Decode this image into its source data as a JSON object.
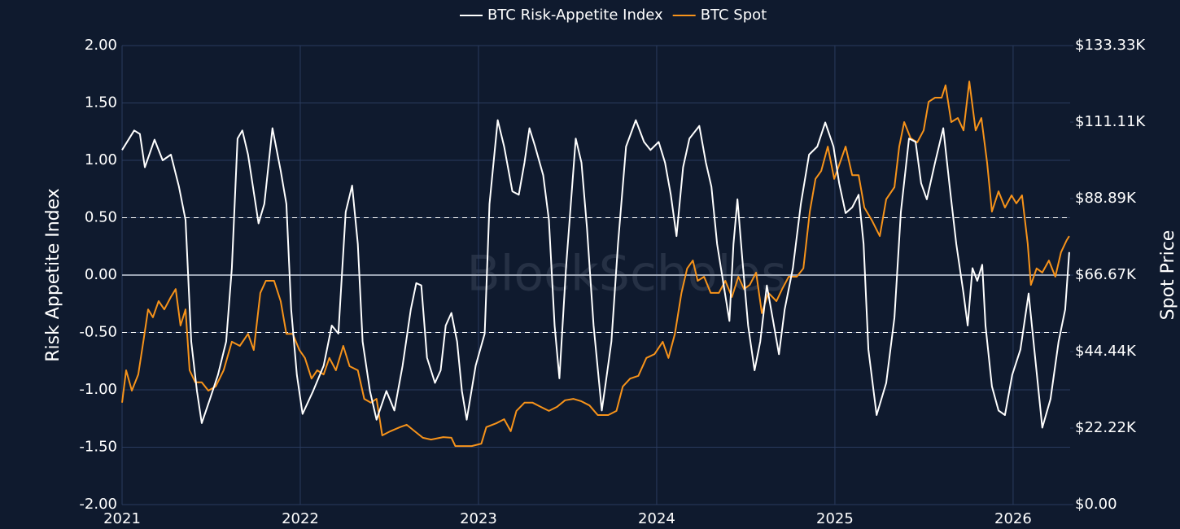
{
  "chart_data": {
    "type": "line",
    "legend": "top",
    "watermark": "BlockScholes",
    "ylabel": "Risk Appetite Index",
    "y2label": "Spot Price",
    "xlim": [
      2021,
      2026.32
    ],
    "xticks": [
      2021,
      2022,
      2023,
      2024,
      2025,
      2026
    ],
    "ylim": [
      -2,
      2
    ],
    "yticks": [
      {
        "value": -2,
        "label": "-2.00"
      },
      {
        "value": -1.5,
        "label": "-1.50"
      },
      {
        "value": -1,
        "label": "-1.00"
      },
      {
        "value": -0.5,
        "label": "-0.50"
      },
      {
        "value": 0,
        "label": "0.00"
      },
      {
        "value": 0.5,
        "label": "0.50"
      },
      {
        "value": 1,
        "label": "1.00"
      },
      {
        "value": 1.5,
        "label": "1.50"
      },
      {
        "value": 2,
        "label": "2.00"
      }
    ],
    "y2lim": [
      0,
      133333.33
    ],
    "y2ticks": [
      {
        "value": 0,
        "label": "$0.00"
      },
      {
        "value": 22222.22,
        "label": "$22.22K"
      },
      {
        "value": 44444.44,
        "label": "$44.44K"
      },
      {
        "value": 66666.67,
        "label": "$66.67K"
      },
      {
        "value": 88888.89,
        "label": "$88.89K"
      },
      {
        "value": 111111.11,
        "label": "$111.11K"
      },
      {
        "value": 133333.33,
        "label": "$133.33K"
      }
    ],
    "grid": true,
    "hlines": [
      {
        "value": -0.5,
        "dashed": true
      },
      {
        "value": 0,
        "dashed": false
      },
      {
        "value": 0.5,
        "dashed": true
      }
    ],
    "series": [
      {
        "name": "BTC Risk-Appetite Index",
        "color": "#ffffff",
        "axis": "y",
        "x": [
          2021.0,
          2021.068,
          2021.1,
          2021.128,
          2021.182,
          2021.228,
          2021.274,
          2021.319,
          2021.356,
          2021.388,
          2021.42,
          2021.447,
          2021.493,
          2021.538,
          2021.584,
          2021.616,
          2021.648,
          2021.675,
          2021.707,
          2021.766,
          2021.798,
          2021.844,
          2021.89,
          2021.922,
          2021.949,
          2021.981,
          2022.013,
          2022.072,
          2022.131,
          2022.177,
          2022.214,
          2022.255,
          2022.291,
          2022.323,
          2022.35,
          2022.391,
          2022.428,
          2022.483,
          2022.528,
          2022.574,
          2022.62,
          2022.651,
          2022.679,
          2022.711,
          2022.756,
          2022.788,
          2022.816,
          2022.848,
          2022.88,
          2022.907,
          2022.934,
          2022.984,
          2023.035,
          2023.062,
          2023.108,
          2023.144,
          2023.19,
          2023.226,
          2023.258,
          2023.286,
          2023.318,
          2023.363,
          2023.395,
          2023.427,
          2023.454,
          2023.491,
          2023.546,
          2023.578,
          2023.609,
          2023.646,
          2023.692,
          2023.714,
          2023.746,
          2023.783,
          2023.828,
          2023.883,
          2023.929,
          2023.965,
          2024.011,
          2024.047,
          2024.079,
          2024.111,
          2024.148,
          2024.184,
          2024.239,
          2024.276,
          2024.307,
          2024.339,
          2024.376,
          2024.408,
          2024.431,
          2024.453,
          2024.481,
          2024.513,
          2024.549,
          2024.581,
          2024.618,
          2024.65,
          2024.686,
          2024.718,
          2024.764,
          2024.809,
          2024.855,
          2024.901,
          2024.946,
          2024.992,
          2025.024,
          2025.06,
          2025.097,
          2025.133,
          2025.161,
          2025.188,
          2025.234,
          2025.288,
          2025.334,
          2025.37,
          2025.416,
          2025.453,
          2025.484,
          2025.516,
          2025.562,
          2025.608,
          2025.644,
          2025.681,
          2025.722,
          2025.745,
          2025.772,
          2025.799,
          2025.827,
          2025.845,
          2025.881,
          2025.918,
          2025.954,
          2025.995,
          2026.041,
          2026.087,
          2026.119,
          2026.164,
          2026.21,
          2026.255,
          2026.292,
          2026.315
        ],
        "values": [
          1.09,
          1.26,
          1.23,
          0.94,
          1.18,
          1.0,
          1.05,
          0.77,
          0.48,
          -0.58,
          -1.01,
          -1.29,
          -1.08,
          -0.87,
          -0.58,
          0.06,
          1.19,
          1.26,
          1.05,
          0.45,
          0.62,
          1.28,
          0.91,
          0.62,
          -0.3,
          -0.87,
          -1.21,
          -1.01,
          -0.79,
          -0.44,
          -0.51,
          0.55,
          0.78,
          0.27,
          -0.58,
          -1.01,
          -1.26,
          -1.01,
          -1.18,
          -0.79,
          -0.3,
          -0.07,
          -0.09,
          -0.72,
          -0.94,
          -0.83,
          -0.44,
          -0.33,
          -0.58,
          -1.01,
          -1.26,
          -0.79,
          -0.51,
          0.62,
          1.35,
          1.12,
          0.73,
          0.7,
          0.98,
          1.28,
          1.12,
          0.87,
          0.48,
          -0.44,
          -0.9,
          0.06,
          1.19,
          0.98,
          0.41,
          -0.44,
          -1.18,
          -0.94,
          -0.58,
          0.27,
          1.12,
          1.35,
          1.16,
          1.09,
          1.16,
          0.98,
          0.7,
          0.34,
          0.94,
          1.19,
          1.3,
          0.98,
          0.77,
          0.27,
          -0.09,
          -0.4,
          0.27,
          0.66,
          0.13,
          -0.44,
          -0.83,
          -0.58,
          -0.09,
          -0.37,
          -0.69,
          -0.3,
          0.06,
          0.62,
          1.05,
          1.12,
          1.33,
          1.12,
          0.8,
          0.54,
          0.59,
          0.7,
          0.27,
          -0.65,
          -1.22,
          -0.94,
          -0.37,
          0.55,
          1.19,
          1.16,
          0.8,
          0.66,
          0.98,
          1.28,
          0.77,
          0.27,
          -0.16,
          -0.44,
          0.06,
          -0.05,
          0.09,
          -0.44,
          -0.97,
          -1.18,
          -1.22,
          -0.87,
          -0.65,
          -0.16,
          -0.65,
          -1.33,
          -1.08,
          -0.58,
          -0.3,
          0.2
        ]
      },
      {
        "name": "BTC Spot",
        "color": "#f7931a",
        "axis": "y2",
        "x": [
          2021.0,
          2021.023,
          2021.055,
          2021.091,
          2021.119,
          2021.146,
          2021.173,
          2021.205,
          2021.237,
          2021.274,
          2021.301,
          2021.328,
          2021.356,
          2021.379,
          2021.411,
          2021.447,
          2021.484,
          2021.525,
          2021.57,
          2021.616,
          2021.661,
          2021.707,
          2021.739,
          2021.776,
          2021.807,
          2021.853,
          2021.89,
          2021.922,
          2021.958,
          2021.995,
          2022.026,
          2022.063,
          2022.095,
          2022.131,
          2022.163,
          2022.2,
          2022.241,
          2022.277,
          2022.323,
          2022.359,
          2022.396,
          2022.428,
          2022.46,
          2022.505,
          2022.56,
          2022.597,
          2022.642,
          2022.688,
          2022.734,
          2022.802,
          2022.848,
          2022.87,
          2022.916,
          2022.962,
          2023.016,
          2023.044,
          2023.099,
          2023.144,
          2023.181,
          2023.213,
          2023.258,
          2023.304,
          2023.349,
          2023.395,
          2023.441,
          2023.486,
          2023.532,
          2023.578,
          2023.623,
          2023.669,
          2023.728,
          2023.774,
          2023.81,
          2023.851,
          2023.897,
          2023.942,
          2023.988,
          2024.034,
          2024.066,
          2024.102,
          2024.139,
          2024.171,
          2024.203,
          2024.23,
          2024.266,
          2024.303,
          2024.349,
          2024.385,
          2024.422,
          2024.458,
          2024.49,
          2024.522,
          2024.558,
          2024.59,
          2024.627,
          2024.672,
          2024.704,
          2024.741,
          2024.786,
          2024.823,
          2024.859,
          2024.891,
          2024.923,
          2024.96,
          2024.996,
          2025.028,
          2025.06,
          2025.097,
          2025.133,
          2025.165,
          2025.206,
          2025.252,
          2025.288,
          2025.334,
          2025.361,
          2025.389,
          2025.425,
          2025.462,
          2025.498,
          2025.526,
          2025.562,
          2025.599,
          2025.621,
          2025.653,
          2025.69,
          2025.722,
          2025.754,
          2025.79,
          2025.822,
          2025.854,
          2025.881,
          2025.918,
          2025.954,
          2025.991,
          2026.018,
          2026.05,
          2026.082,
          2026.1,
          2026.132,
          2026.164,
          2026.201,
          2026.237,
          2026.269,
          2026.301,
          2026.315
        ],
        "values": [
          29600,
          39000,
          33100,
          37800,
          47300,
          56700,
          54400,
          59100,
          56700,
          60300,
          62600,
          52000,
          56700,
          39000,
          35500,
          35500,
          33100,
          34300,
          39000,
          47300,
          46100,
          49600,
          44900,
          61500,
          65000,
          65000,
          59100,
          49600,
          49600,
          44900,
          42600,
          36600,
          39000,
          37800,
          42600,
          39000,
          46100,
          40200,
          39000,
          30700,
          29600,
          30700,
          20100,
          21300,
          22500,
          23200,
          21300,
          19400,
          18900,
          19600,
          19400,
          17000,
          17000,
          17000,
          17700,
          22500,
          23600,
          24800,
          21300,
          27200,
          29600,
          29600,
          28400,
          27200,
          28400,
          30300,
          30700,
          30000,
          28800,
          26000,
          26000,
          27200,
          34300,
          36600,
          37400,
          42600,
          43700,
          47300,
          42600,
          49600,
          61500,
          68600,
          70900,
          65000,
          66200,
          61500,
          61500,
          65000,
          60300,
          66200,
          62600,
          63800,
          67400,
          55600,
          61500,
          59100,
          62600,
          66200,
          66200,
          68600,
          85100,
          94600,
          96900,
          104000,
          94600,
          99300,
          104000,
          95700,
          95700,
          86300,
          82700,
          78000,
          88700,
          92200,
          104000,
          111100,
          106400,
          105200,
          108700,
          117000,
          118200,
          118200,
          121800,
          111100,
          112300,
          108700,
          122900,
          108700,
          112300,
          99300,
          85100,
          91000,
          86300,
          89800,
          87500,
          89800,
          75700,
          63800,
          68600,
          67400,
          70900,
          66200,
          73300,
          76800,
          78000
        ]
      }
    ]
  }
}
